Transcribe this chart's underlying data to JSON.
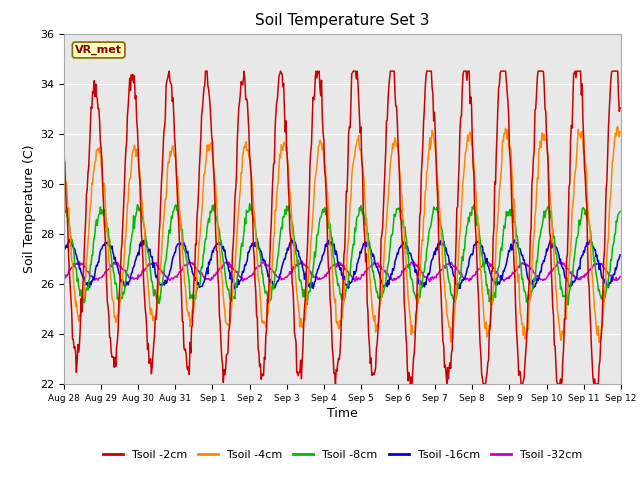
{
  "title": "Soil Temperature Set 3",
  "xlabel": "Time",
  "ylabel": "Soil Temperature (C)",
  "ylim": [
    22,
    36
  ],
  "yticks": [
    22,
    24,
    26,
    28,
    30,
    32,
    34,
    36
  ],
  "fig_bg_color": "#ffffff",
  "plot_bg_color": "#e8e8e8",
  "grid_color": "#ffffff",
  "series": {
    "Tsoil -2cm": {
      "color": "#cc0000"
    },
    "Tsoil -4cm": {
      "color": "#ff8800"
    },
    "Tsoil -8cm": {
      "color": "#00bb00"
    },
    "Tsoil -16cm": {
      "color": "#0000cc"
    },
    "Tsoil -32cm": {
      "color": "#cc00cc"
    }
  },
  "xtick_labels": [
    "Aug 28",
    "Aug 29",
    "Aug 30",
    "Aug 31",
    "Sep 1",
    "Sep 2",
    "Sep 3",
    "Sep 4",
    "Sep 5",
    "Sep 6",
    "Sep 7",
    "Sep 8",
    "Sep 9",
    "Sep 10",
    "Sep 11",
    "Sep 12"
  ],
  "vr_met_label": "VR_met",
  "n_days": 15,
  "samples_per_day": 48
}
